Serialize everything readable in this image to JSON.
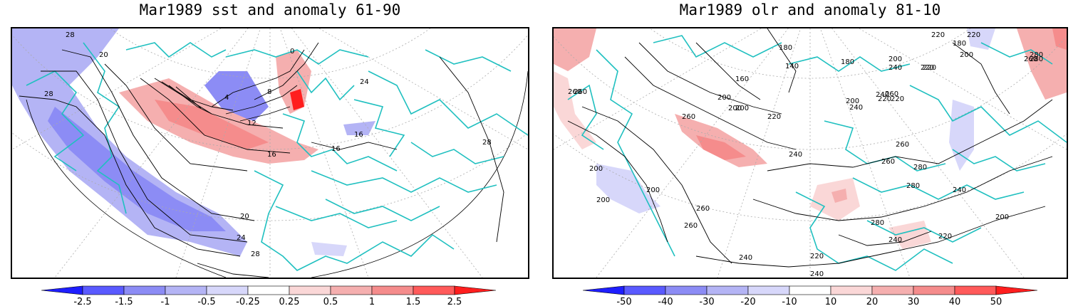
{
  "panels": [
    {
      "title": "Mar1989 sst and anomaly 61-90",
      "colorbar": {
        "labels": [
          "-2.5",
          "-1.5",
          "-1",
          "-0.5",
          "-0.25",
          "0.25",
          "0.5",
          "1",
          "1.5",
          "2.5"
        ],
        "colors": [
          "#1e1eff",
          "#5a5aff",
          "#8c8cf5",
          "#b4b4f5",
          "#d7d7fa",
          "#ffffff",
          "#fad7d7",
          "#f5afaf",
          "#f58c8c",
          "#ff5a5a",
          "#ff1e1e"
        ]
      },
      "contour_labels": [
        "28",
        "20",
        "28",
        "0",
        "4",
        "8",
        "12",
        "16",
        "16",
        "16",
        "20",
        "24",
        "28",
        "28",
        "24"
      ]
    },
    {
      "title": "Mar1989 olr and anomaly 81-10",
      "colorbar": {
        "labels": [
          "-50",
          "-40",
          "-30",
          "-20",
          "-10",
          "10",
          "20",
          "30",
          "40",
          "50"
        ],
        "colors": [
          "#1e1eff",
          "#5a5aff",
          "#8c8cf5",
          "#b4b4f5",
          "#d7d7fa",
          "#ffffff",
          "#fad7d7",
          "#f5afaf",
          "#f58c8c",
          "#ff5a5a",
          "#ff1e1e"
        ]
      },
      "contour_labels": [
        "220",
        "220",
        "180",
        "160",
        "140",
        "180",
        "200",
        "260",
        "280",
        "180",
        "200",
        "280",
        "200",
        "240",
        "220",
        "260",
        "200",
        "240",
        "220",
        "220",
        "220",
        "260",
        "200",
        "200",
        "220",
        "240",
        "260",
        "260",
        "280",
        "280",
        "260",
        "240",
        "200",
        "200",
        "260",
        "260",
        "240",
        "280",
        "260",
        "240",
        "220",
        "200",
        "220",
        "240",
        "200",
        "240"
      ]
    }
  ],
  "colors": {
    "coast": "#20c0c0",
    "contour": "#000000",
    "grid": "#aaaaaa"
  }
}
